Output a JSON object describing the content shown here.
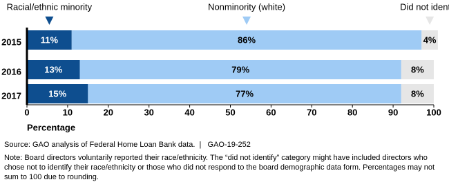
{
  "chart_data": {
    "type": "stacked-bar",
    "orientation": "horizontal",
    "categories": [
      "2015",
      "2016",
      "2017"
    ],
    "series": [
      {
        "name": "Racial/ethnic minority",
        "color": "#0e4e8f",
        "values": [
          11,
          13,
          15
        ],
        "value_labels": [
          "11%",
          "13%",
          "15%"
        ]
      },
      {
        "name": "Nonminority (white)",
        "color": "#9fcbf5",
        "values": [
          86,
          79,
          77
        ],
        "value_labels": [
          "86%",
          "79%",
          "77%"
        ]
      },
      {
        "name": "Did not identify",
        "color": "#e6e6e6",
        "values": [
          4,
          8,
          8
        ],
        "value_labels": [
          "4%",
          "8%",
          "8%"
        ]
      }
    ],
    "xlim": [
      0,
      100
    ],
    "xticks": [
      0,
      10,
      20,
      30,
      40,
      50,
      60,
      70,
      80,
      90,
      100
    ],
    "xlabel": "Percentage",
    "source": "Source: GAO analysis of Federal Home Loan Bank data.  |   GAO-19-252",
    "note": "Note: Board directors voluntarily reported their race/ethnicity. The “did not identify” category might have included directors who chose not to identify their race/ethnicity or those who did not respond to the board demographic data form. Percentages may not sum to 100 due to rounding."
  }
}
